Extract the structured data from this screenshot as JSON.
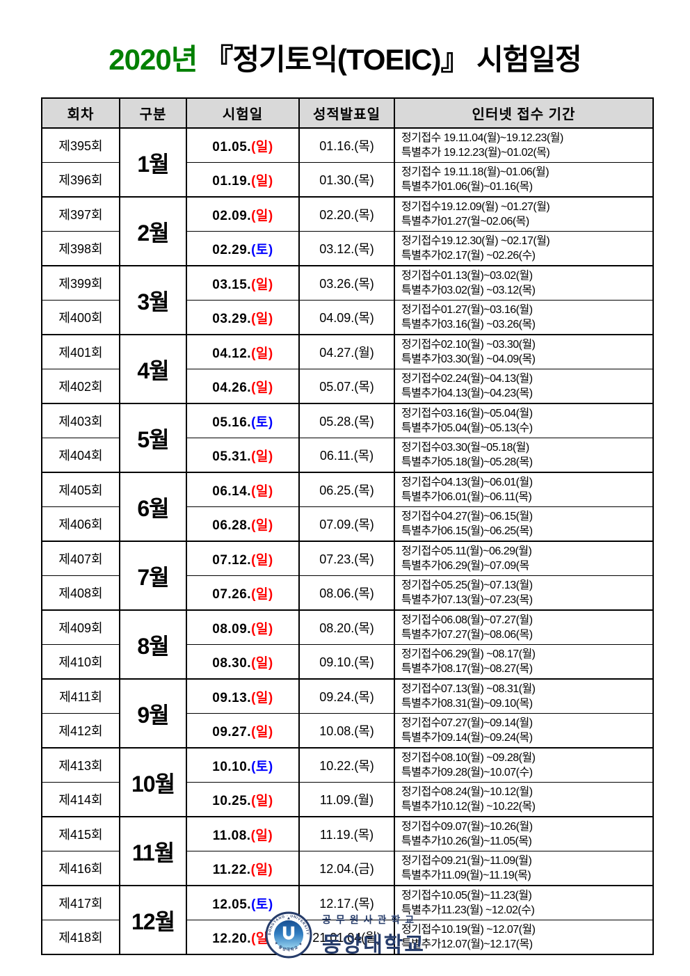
{
  "colors": {
    "title_green": "#008000",
    "sunday_red": "#ff0000",
    "saturday_blue": "#0000ff",
    "header_bg": "#d9d9d9",
    "logo_navy": "#263c6a"
  },
  "title": {
    "year": "2020년",
    "rest": "『정기토익(TOEIC)』 시험일정"
  },
  "table": {
    "headers": [
      "회차",
      "구분",
      "시험일",
      "성적발표일",
      "인터넷 접수 기간"
    ],
    "groups": [
      {
        "month": "1월",
        "rows": [
          {
            "session": "제395회",
            "exam_date": "01.05.",
            "exam_day": "(일)",
            "day_type": "sunday",
            "score_date": "01.16.(목)",
            "reg_regular": "정기접수 19.11.04(월)~19.12.23(월)",
            "reg_special": "특별추가 19.12.23(월)~01.02(목)"
          },
          {
            "session": "제396회",
            "exam_date": "01.19.",
            "exam_day": "(일)",
            "day_type": "sunday",
            "score_date": "01.30.(목)",
            "reg_regular": "정기접수 19.11.18(월)~01.06(월)",
            "reg_special": "특별추가01.06(월)~01.16(목)"
          }
        ]
      },
      {
        "month": "2월",
        "rows": [
          {
            "session": "제397회",
            "exam_date": "02.09.",
            "exam_day": "(일)",
            "day_type": "sunday",
            "score_date": "02.20.(목)",
            "reg_regular": "정기접수19.12.09(월) ~01.27(월)",
            "reg_special": "특별추가01.27(월~02.06(목)"
          },
          {
            "session": "제398회",
            "exam_date": "02.29.",
            "exam_day": "(토)",
            "day_type": "saturday",
            "score_date": "03.12.(목)",
            "reg_regular": "정기접수19.12.30(월) ~02.17(월)",
            "reg_special": "특별추가02.17(월) ~02.26(수)"
          }
        ]
      },
      {
        "month": "3월",
        "rows": [
          {
            "session": "제399회",
            "exam_date": "03.15.",
            "exam_day": "(일)",
            "day_type": "sunday",
            "score_date": "03.26.(목)",
            "reg_regular": "정기접수01.13(월)~03.02(월)",
            "reg_special": "특별추가03.02(월) ~03.12(목)"
          },
          {
            "session": "제400회",
            "exam_date": "03.29.",
            "exam_day": "(일)",
            "day_type": "sunday",
            "score_date": "04.09.(목)",
            "reg_regular": "정기접수01.27(월)~03.16(월)",
            "reg_special": "특별추가03.16(월) ~03.26(목)"
          }
        ]
      },
      {
        "month": "4월",
        "rows": [
          {
            "session": "제401회",
            "exam_date": "04.12.",
            "exam_day": "(일)",
            "day_type": "sunday",
            "score_date": "04.27.(월)",
            "reg_regular": "정기접수02.10(월) ~03.30(월)",
            "reg_special": "특별추가03.30(월) ~04.09(목)"
          },
          {
            "session": "제402회",
            "exam_date": "04.26.",
            "exam_day": "(일)",
            "day_type": "sunday",
            "score_date": "05.07.(목)",
            "reg_regular": "정기접수02.24(월)~04.13(월)",
            "reg_special": "특별추가04.13(월)~04.23(목)"
          }
        ]
      },
      {
        "month": "5월",
        "rows": [
          {
            "session": "제403회",
            "exam_date": "05.16.",
            "exam_day": "(토)",
            "day_type": "saturday",
            "score_date": "05.28.(목)",
            "reg_regular": "정기접수03.16(월)~05.04(월)",
            "reg_special": "특별추가05.04(월)~05.13(수)"
          },
          {
            "session": "제404회",
            "exam_date": "05.31.",
            "exam_day": "(일)",
            "day_type": "sunday",
            "score_date": "06.11.(목)",
            "reg_regular": "정기접수03.30(월~05.18(월)",
            "reg_special": "특별추가05.18(월)~05.28(목)"
          }
        ]
      },
      {
        "month": "6월",
        "rows": [
          {
            "session": "제405회",
            "exam_date": "06.14.",
            "exam_day": "(일)",
            "day_type": "sunday",
            "score_date": "06.25.(목)",
            "reg_regular": "정기접수04.13(월)~06.01(월)",
            "reg_special": "특별추가06.01(월)~06.11(목)"
          },
          {
            "session": "제406회",
            "exam_date": "06.28.",
            "exam_day": "(일)",
            "day_type": "sunday",
            "score_date": "07.09.(목)",
            "reg_regular": "정기접수04.27(월)~06.15(월)",
            "reg_special": "특별추가06.15(월)~06.25(목)"
          }
        ]
      },
      {
        "month": "7월",
        "rows": [
          {
            "session": "제407회",
            "exam_date": "07.12.",
            "exam_day": "(일)",
            "day_type": "sunday",
            "score_date": "07.23.(목)",
            "reg_regular": "정기접수05.11(월)~06.29(월)",
            "reg_special": "특별추가06.29(월)~07.09(목"
          },
          {
            "session": "제408회",
            "exam_date": "07.26.",
            "exam_day": "(일)",
            "day_type": "sunday",
            "score_date": "08.06.(목)",
            "reg_regular": "정기접수05.25(월)~07.13(월)",
            "reg_special": "특별추가07.13(월)~07.23(목)"
          }
        ]
      },
      {
        "month": "8월",
        "rows": [
          {
            "session": "제409회",
            "exam_date": "08.09.",
            "exam_day": "(일)",
            "day_type": "sunday",
            "score_date": "08.20.(목)",
            "reg_regular": "정기접수06.08(월)~07.27(월)",
            "reg_special": "특별추가07.27(월)~08.06(목)"
          },
          {
            "session": "제410회",
            "exam_date": "08.30.",
            "exam_day": "(일)",
            "day_type": "sunday",
            "score_date": "09.10.(목)",
            "reg_regular": "정기접수06.29(월) ~08.17(월)",
            "reg_special": "특별추가08.17(월)~08.27(목)"
          }
        ]
      },
      {
        "month": "9월",
        "rows": [
          {
            "session": "제411회",
            "exam_date": "09.13.",
            "exam_day": "(일)",
            "day_type": "sunday",
            "score_date": "09.24.(목)",
            "reg_regular": "정기접수07.13(월) ~08.31(월)",
            "reg_special": "특별추가08.31(월)~09.10(목)"
          },
          {
            "session": "제412회",
            "exam_date": "09.27.",
            "exam_day": "(일)",
            "day_type": "sunday",
            "score_date": "10.08.(목)",
            "reg_regular": "정기접수07.27(월)~09.14(월)",
            "reg_special": "특별추가09.14(월)~09.24(목)"
          }
        ]
      },
      {
        "month": "10월",
        "rows": [
          {
            "session": "제413회",
            "exam_date": "10.10.",
            "exam_day": "(토)",
            "day_type": "saturday",
            "score_date": "10.22.(목)",
            "reg_regular": "정기접수08.10(월) ~09.28(월)",
            "reg_special": "특별추가09.28(월)~10.07(수)"
          },
          {
            "session": "제414회",
            "exam_date": "10.25.",
            "exam_day": "(일)",
            "day_type": "sunday",
            "score_date": "11.09.(월)",
            "reg_regular": "정기접수08.24(월)~10.12(월)",
            "reg_special": "특별추가10.12(월) ~10.22(목)"
          }
        ]
      },
      {
        "month": "11월",
        "rows": [
          {
            "session": "제415회",
            "exam_date": "11.08.",
            "exam_day": "(일)",
            "day_type": "sunday",
            "score_date": "11.19.(목)",
            "reg_regular": "정기접수09.07(월)~10.26(월)",
            "reg_special": "특별추가10.26(월)~11.05(목)"
          },
          {
            "session": "제416회",
            "exam_date": "11.22.",
            "exam_day": "(일)",
            "day_type": "sunday",
            "score_date": "12.04.(금)",
            "reg_regular": "정기접수09.21(월)~11.09(월)",
            "reg_special": "특별추가11.09(월)~11.19(목)"
          }
        ]
      },
      {
        "month": "12월",
        "rows": [
          {
            "session": "제417회",
            "exam_date": "12.05.",
            "exam_day": "(토)",
            "day_type": "saturday",
            "score_date": "12.17.(목)",
            "reg_regular": "정기접수10.05(월)~11.23(월)",
            "reg_special": "특별추가11.23(월) ~12.02(수)"
          },
          {
            "session": "제418회",
            "exam_date": "12.20.",
            "exam_day": "(일)",
            "day_type": "sunday",
            "score_date": "21.01.04(월)",
            "reg_regular": "정기접수10.19(월) ~12.07(월)",
            "reg_special": "특별추가12.07(월)~12.17(목)"
          }
        ]
      }
    ]
  },
  "footer": {
    "line1": "공무원사관학교",
    "line2": "동양대학교",
    "seal_text_top": "DONGYANG UNIVERSITY",
    "seal_text_bottom": "동양대학교"
  }
}
